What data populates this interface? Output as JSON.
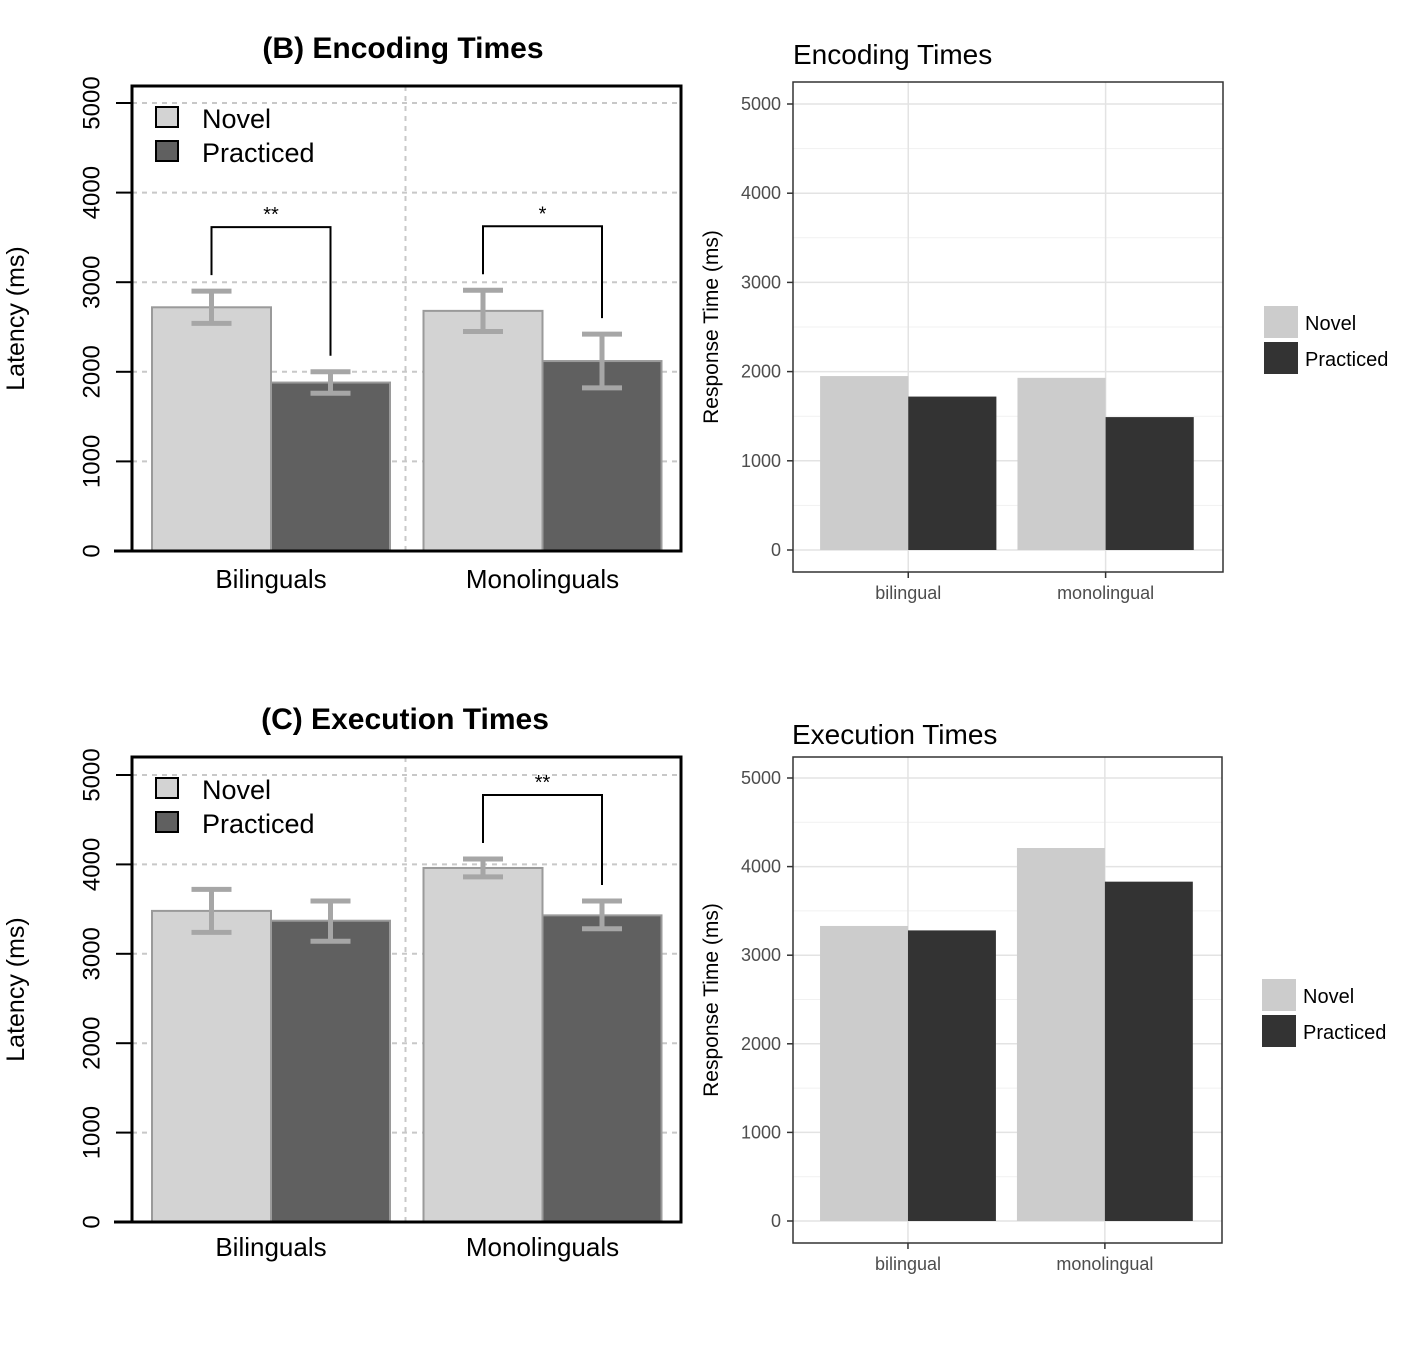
{
  "chart_data": [
    {
      "type": "bar",
      "style": "base",
      "title": "(B) Encoding Times",
      "ylabel": "Latency (ms)",
      "xlabel": "",
      "ylim": [
        0,
        5000
      ],
      "yticks": [
        0,
        1000,
        2000,
        3000,
        4000,
        5000
      ],
      "grid": "dashed",
      "legend_position": "top-left",
      "categories": [
        "Bilinguals",
        "Monolinguals"
      ],
      "series": [
        {
          "name": "Novel",
          "color": "#d3d3d3",
          "values": [
            2720,
            2680
          ],
          "error_low": [
            2540,
            2450
          ],
          "error_high": [
            2900,
            2910
          ]
        },
        {
          "name": "Practiced",
          "color": "#606060",
          "values": [
            1880,
            2120
          ],
          "error_low": [
            1760,
            1820
          ],
          "error_high": [
            2000,
            2420
          ]
        }
      ],
      "significance": [
        {
          "category": "Bilinguals",
          "label": "**"
        },
        {
          "category": "Monolinguals",
          "label": "*"
        }
      ]
    },
    {
      "type": "bar",
      "style": "ggplot",
      "title": "Encoding Times",
      "ylabel": "Response Time (ms)",
      "xlabel": "",
      "ylim": [
        0,
        5000
      ],
      "yticks": [
        0,
        1000,
        2000,
        3000,
        4000,
        5000
      ],
      "grid": "on",
      "legend_position": "right",
      "categories": [
        "bilingual",
        "monolingual"
      ],
      "series": [
        {
          "name": "Novel",
          "color": "#cccccc",
          "values": [
            1950,
            1930
          ]
        },
        {
          "name": "Practiced",
          "color": "#333333",
          "values": [
            1720,
            1490
          ]
        }
      ]
    },
    {
      "type": "bar",
      "style": "base",
      "title": "(C) Execution Times",
      "ylabel": "Latency (ms)",
      "xlabel": "",
      "ylim": [
        0,
        5000
      ],
      "yticks": [
        0,
        1000,
        2000,
        3000,
        4000,
        5000
      ],
      "grid": "dashed",
      "legend_position": "top-left",
      "categories": [
        "Bilinguals",
        "Monolinguals"
      ],
      "series": [
        {
          "name": "Novel",
          "color": "#d3d3d3",
          "values": [
            3480,
            3960
          ],
          "error_low": [
            3240,
            3860
          ],
          "error_high": [
            3720,
            4060
          ]
        },
        {
          "name": "Practiced",
          "color": "#606060",
          "values": [
            3370,
            3430
          ],
          "error_low": [
            3140,
            3280
          ],
          "error_high": [
            3590,
            3590
          ]
        }
      ],
      "significance": [
        {
          "category": "Monolinguals",
          "label": "**"
        }
      ]
    },
    {
      "type": "bar",
      "style": "ggplot",
      "title": "Execution Times",
      "ylabel": "Response Time (ms)",
      "xlabel": "",
      "ylim": [
        0,
        5000
      ],
      "yticks": [
        0,
        1000,
        2000,
        3000,
        4000,
        5000
      ],
      "grid": "on",
      "legend_position": "right",
      "categories": [
        "bilingual",
        "monolingual"
      ],
      "series": [
        {
          "name": "Novel",
          "color": "#cccccc",
          "values": [
            3330,
            4210
          ]
        },
        {
          "name": "Practiced",
          "color": "#333333",
          "values": [
            3280,
            3830
          ]
        }
      ]
    }
  ]
}
